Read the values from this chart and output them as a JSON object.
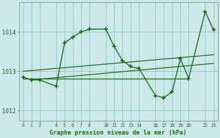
{
  "background_color": "#cce8e8",
  "grid_color": "#99cccc",
  "line_color": "#1a6b1a",
  "title": "Graphe pression niveau de la mer (hPa)",
  "xlim": [
    -0.5,
    23.5
  ],
  "ylim": [
    1011.75,
    1014.75
  ],
  "yticks": [
    1012,
    1013,
    1014
  ],
  "ytick_labels": [
    "1012",
    "1013",
    "1014"
  ],
  "xtick_positions": [
    0,
    1,
    2,
    4,
    5,
    6,
    7,
    8,
    10,
    11,
    12,
    13,
    14,
    16,
    17,
    18,
    19,
    20,
    22,
    23
  ],
  "xtick_labels": [
    "0",
    "1",
    "2",
    "4",
    "5",
    "6",
    "7",
    "8",
    "10",
    "11",
    "12",
    "13",
    "14",
    "16",
    "17",
    "18",
    "19",
    "20",
    "22",
    "23"
  ],
  "main_x": [
    0,
    1,
    2,
    4,
    5,
    6,
    7,
    8,
    10,
    11,
    12,
    13,
    14,
    16,
    17,
    18,
    19,
    20,
    22,
    23
  ],
  "main_y": [
    1012.85,
    1012.78,
    1012.78,
    1012.62,
    1013.72,
    1013.87,
    1014.0,
    1014.07,
    1014.07,
    1013.63,
    1013.27,
    1013.12,
    1013.07,
    1012.38,
    1012.33,
    1012.48,
    1013.32,
    1012.82,
    1014.52,
    1014.05
  ],
  "trend1_x": [
    0,
    20
  ],
  "trend1_y": [
    1012.82,
    1012.82
  ],
  "trend2_x": [
    1,
    23
  ],
  "trend2_y": [
    1012.78,
    1013.2
  ],
  "trend3_x": [
    0,
    23
  ],
  "trend3_y": [
    1013.0,
    1013.42
  ]
}
